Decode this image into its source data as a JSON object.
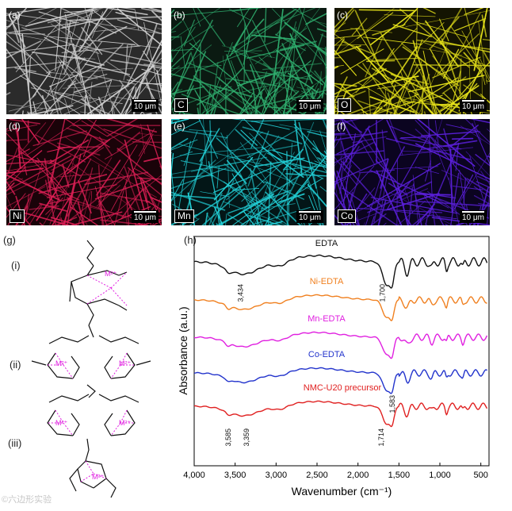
{
  "sem_panels": [
    {
      "label": "(a)",
      "element": "",
      "scale": "10 μm",
      "color": "#cfcfcf",
      "bg": "#2b2b2b"
    },
    {
      "label": "(b)",
      "element": "C",
      "scale": "10 μm",
      "color": "#2fae6e",
      "bg": "#0b1a12"
    },
    {
      "label": "(c)",
      "element": "O",
      "scale": "10 μm",
      "color": "#e6e21a",
      "bg": "#141402"
    },
    {
      "label": "(d)",
      "element": "Ni",
      "scale": "10 μm",
      "color": "#dc1f55",
      "bg": "#1a0309"
    },
    {
      "label": "(e)",
      "element": "Mn",
      "scale": "10 μm",
      "color": "#22cfd6",
      "bg": "#031617"
    },
    {
      "label": "(f)",
      "element": "Co",
      "scale": "10 μm",
      "color": "#5a1fd9",
      "bg": "#0b0420"
    }
  ],
  "panel_g": {
    "label": "(g)",
    "structures": [
      {
        "roman": "(i)",
        "metal": "M²⁺"
      },
      {
        "roman": "(ii)",
        "metal": "M²⁺"
      },
      {
        "roman": "(iii)",
        "metal": "M²⁺"
      }
    ]
  },
  "chart_data": {
    "type": "line",
    "panel_label": "(h)",
    "title": "",
    "xlabel": "Wavenumber (cm⁻¹)",
    "ylabel": "Absorbance (a.u.)",
    "xlim": [
      4000,
      400
    ],
    "x_ticks": [
      4000,
      3500,
      3000,
      2500,
      2000,
      1500,
      1000,
      500
    ],
    "x_tick_labels": [
      "4,000",
      "3,500",
      "3,000",
      "2,500",
      "2,000",
      "1,500",
      "1,000",
      "500"
    ],
    "series": [
      {
        "name": "NMC-U20 precursor",
        "color": "#e02020",
        "offset": 4
      },
      {
        "name": "Co-EDTA",
        "color": "#2233cc",
        "offset": 3
      },
      {
        "name": "Mn-EDTA",
        "color": "#e020e0",
        "offset": 2
      },
      {
        "name": "Ni-EDTA",
        "color": "#f08020",
        "offset": 1
      },
      {
        "name": "EDTA",
        "color": "#111111",
        "offset": 0
      }
    ],
    "annotations": [
      {
        "text": "3,585",
        "x": 3585,
        "series": "NMC-U20 precursor"
      },
      {
        "text": "3,359",
        "x": 3359,
        "series": "NMC-U20 precursor"
      },
      {
        "text": "1,714",
        "x": 1714,
        "series": "NMC-U20 precursor"
      },
      {
        "text": "1,583",
        "x": 1583,
        "series": "Co-EDTA"
      },
      {
        "text": "3,434",
        "x": 3434,
        "series": "EDTA"
      },
      {
        "text": "1,700",
        "x": 1700,
        "series": "EDTA"
      }
    ]
  },
  "watermark": "©六边形实验"
}
